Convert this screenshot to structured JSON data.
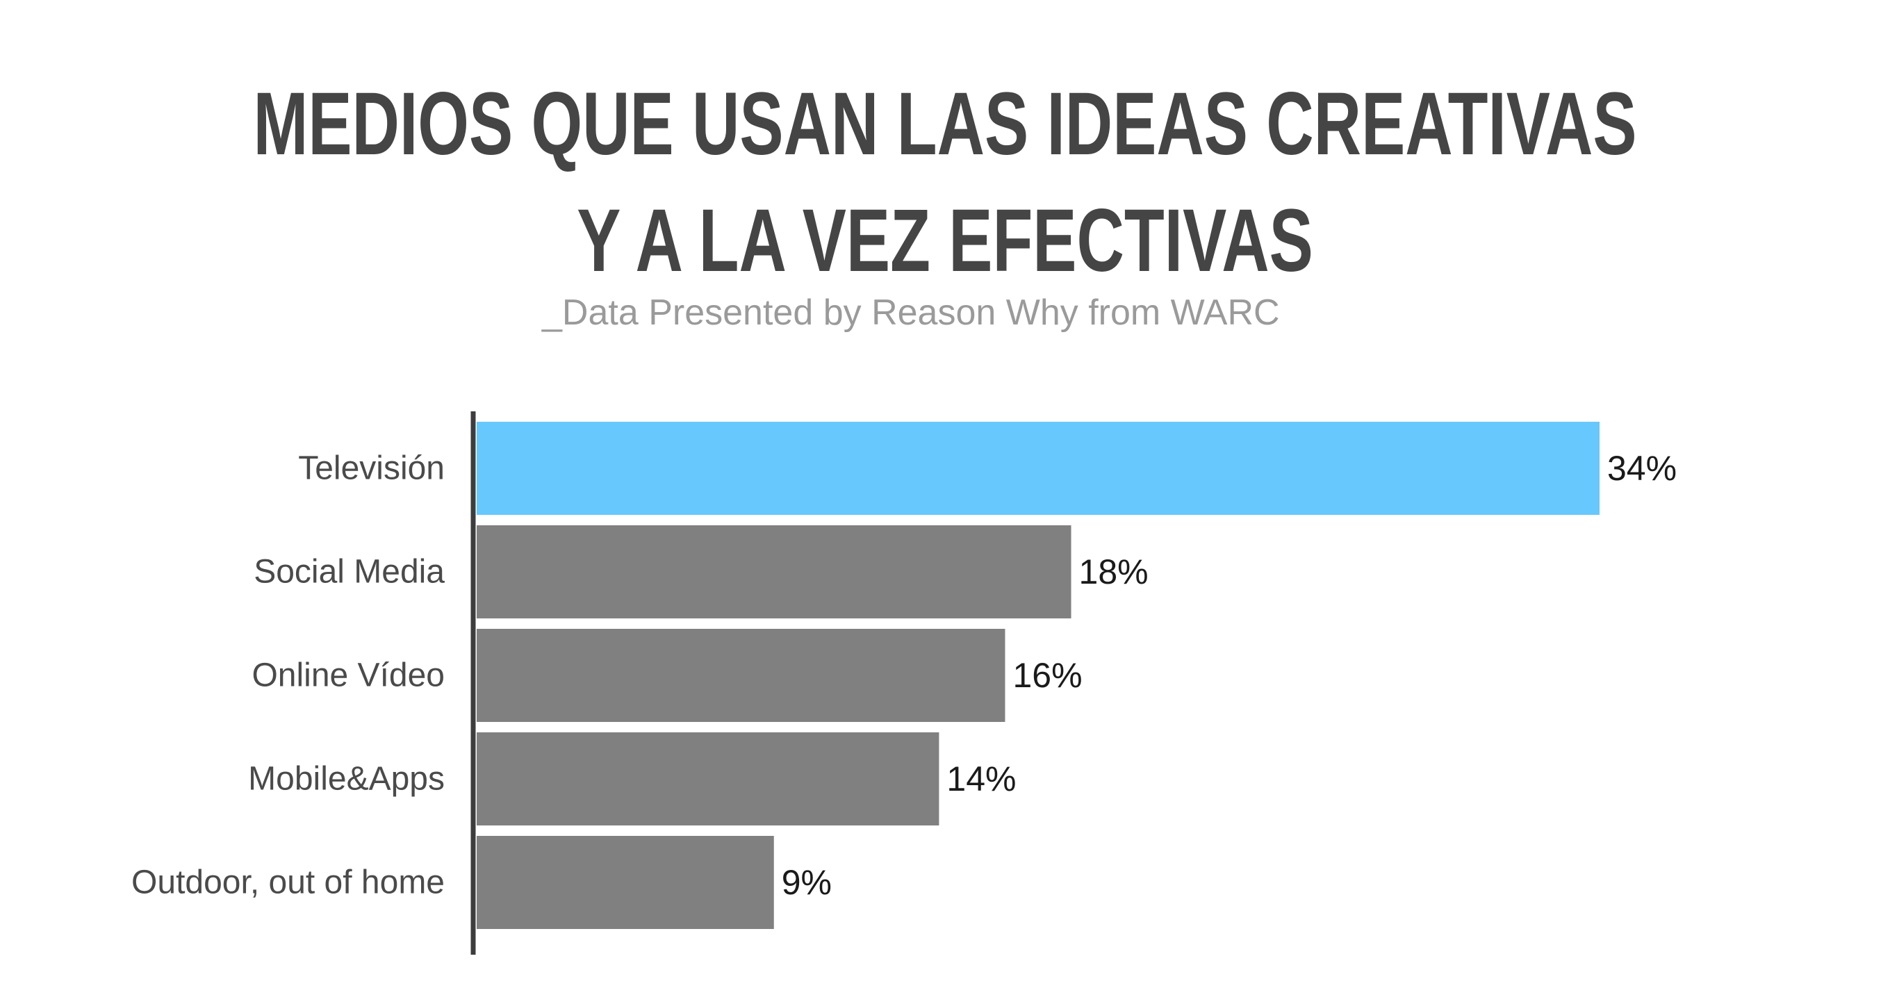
{
  "chart_data": {
    "type": "bar",
    "orientation": "horizontal",
    "title": "MEDIOS QUE USAN LAS IDEAS CREATIVAS Y A LA VEZ EFECTIVAS",
    "title_lines": [
      "MEDIOS QUE USAN LAS IDEAS CREATIVAS",
      "Y A LA VEZ EFECTIVAS"
    ],
    "subtitle": "_Data Presented by Reason Why from WARC",
    "categories": [
      "Televisión",
      "Social Media",
      "Online Vídeo",
      "Mobile&Apps",
      "Outdoor, out of home"
    ],
    "values": [
      34,
      18,
      16,
      14,
      9
    ],
    "value_labels": [
      "34%",
      "18%",
      "16%",
      "14%",
      "9%"
    ],
    "unit": "%",
    "xlim": [
      0,
      34
    ],
    "grid": false,
    "legend": "none",
    "colors": {
      "highlight": "#66c8fc",
      "bar": "#808080",
      "axis": "#3d3d3d",
      "title": "#454545",
      "subtitle": "#9a9a9a"
    },
    "highlight_index": 0
  }
}
